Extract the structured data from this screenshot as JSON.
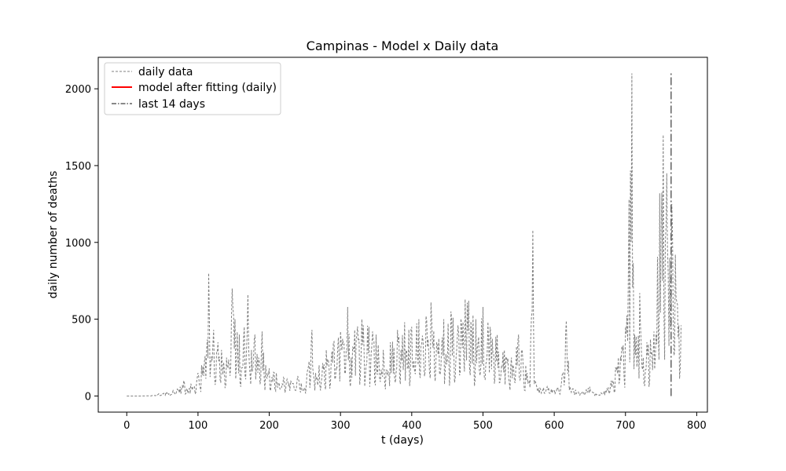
{
  "chart_data": {
    "type": "line",
    "title": "Campinas - Model x Daily data",
    "xlabel": "t (days)",
    "ylabel": "daily number of deaths",
    "xlim": [
      -40,
      815
    ],
    "ylim": [
      -105,
      2205
    ],
    "xticks": [
      0,
      100,
      200,
      300,
      400,
      500,
      600,
      700,
      800
    ],
    "yticks": [
      0,
      500,
      1000,
      1500,
      2000
    ],
    "grid": false,
    "legend_position": "top-left",
    "legend": [
      {
        "label": "daily data",
        "style": "dashed",
        "color": "#808080"
      },
      {
        "label": "model after fitting (daily)",
        "style": "solid",
        "color": "#ff0000"
      },
      {
        "label": "last 14 days",
        "style": "dashdot",
        "color": "#606060"
      }
    ],
    "series": [
      {
        "name": "daily data",
        "style": "dashed",
        "color": "#808080",
        "x_start": 0,
        "x_step": 1,
        "key_points": [
          [
            0,
            0
          ],
          [
            20,
            0
          ],
          [
            35,
            2
          ],
          [
            45,
            15
          ],
          [
            55,
            25
          ],
          [
            65,
            35
          ],
          [
            75,
            60
          ],
          [
            80,
            100
          ],
          [
            85,
            40
          ],
          [
            90,
            80
          ],
          [
            95,
            60
          ],
          [
            100,
            150
          ],
          [
            105,
            200
          ],
          [
            110,
            260
          ],
          [
            115,
            800
          ],
          [
            118,
            200
          ],
          [
            122,
            430
          ],
          [
            128,
            350
          ],
          [
            133,
            300
          ],
          [
            140,
            250
          ],
          [
            148,
            700
          ],
          [
            152,
            500
          ],
          [
            158,
            400
          ],
          [
            165,
            450
          ],
          [
            170,
            660
          ],
          [
            175,
            300
          ],
          [
            180,
            400
          ],
          [
            185,
            250
          ],
          [
            190,
            420
          ],
          [
            195,
            200
          ],
          [
            200,
            180
          ],
          [
            210,
            150
          ],
          [
            220,
            120
          ],
          [
            230,
            100
          ],
          [
            240,
            130
          ],
          [
            250,
            50
          ],
          [
            260,
            430
          ],
          [
            265,
            150
          ],
          [
            270,
            200
          ],
          [
            280,
            300
          ],
          [
            290,
            350
          ],
          [
            300,
            420
          ],
          [
            310,
            580
          ],
          [
            315,
            250
          ],
          [
            320,
            430
          ],
          [
            330,
            500
          ],
          [
            340,
            450
          ],
          [
            350,
            400
          ],
          [
            360,
            300
          ],
          [
            370,
            350
          ],
          [
            380,
            430
          ],
          [
            390,
            480
          ],
          [
            400,
            450
          ],
          [
            410,
            500
          ],
          [
            420,
            520
          ],
          [
            427,
            610
          ],
          [
            435,
            350
          ],
          [
            445,
            500
          ],
          [
            455,
            550
          ],
          [
            465,
            460
          ],
          [
            475,
            630
          ],
          [
            480,
            620
          ],
          [
            490,
            500
          ],
          [
            500,
            580
          ],
          [
            510,
            450
          ],
          [
            520,
            400
          ],
          [
            530,
            300
          ],
          [
            540,
            250
          ],
          [
            550,
            400
          ],
          [
            560,
            200
          ],
          [
            565,
            100
          ],
          [
            570,
            1080
          ],
          [
            573,
            100
          ],
          [
            580,
            50
          ],
          [
            590,
            60
          ],
          [
            600,
            40
          ],
          [
            610,
            80
          ],
          [
            617,
            490
          ],
          [
            622,
            60
          ],
          [
            630,
            40
          ],
          [
            640,
            30
          ],
          [
            650,
            60
          ],
          [
            660,
            10
          ],
          [
            670,
            30
          ],
          [
            680,
            100
          ],
          [
            690,
            250
          ],
          [
            700,
            450
          ],
          [
            705,
            1280
          ],
          [
            709,
            2100
          ],
          [
            713,
            400
          ],
          [
            720,
            670
          ],
          [
            725,
            250
          ],
          [
            730,
            350
          ],
          [
            740,
            420
          ],
          [
            748,
            1320
          ],
          [
            753,
            1700
          ],
          [
            758,
            1450
          ],
          [
            762,
            900
          ],
          [
            765,
            1250
          ],
          [
            770,
            920
          ],
          [
            775,
            460
          ],
          [
            778,
            460
          ]
        ]
      },
      {
        "name": "last 14 days",
        "style": "dashdot",
        "color": "#606060",
        "key_points": [
          [
            764,
            0
          ],
          [
            764,
            2100
          ]
        ]
      }
    ]
  }
}
